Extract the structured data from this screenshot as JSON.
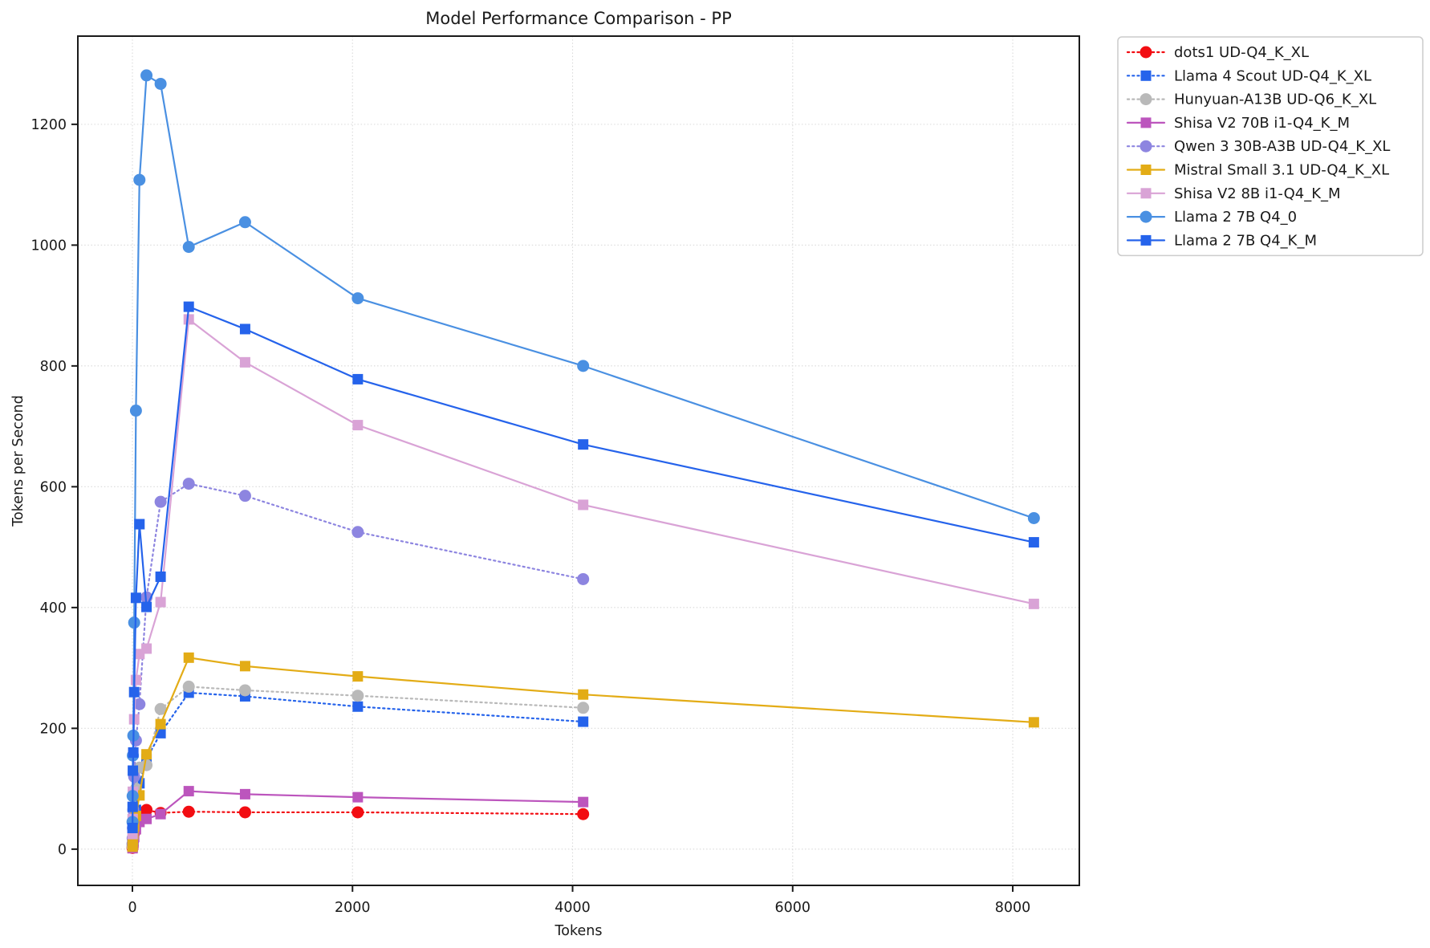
{
  "figure": {
    "title": "Model Performance Comparison - PP"
  },
  "chart_data": {
    "type": "line",
    "title": "Model Performance Comparison - PP",
    "xlabel": "Tokens",
    "ylabel": "Tokens per Second",
    "xlim": [
      -496,
      8605
    ],
    "ylim": [
      -60,
      1346
    ],
    "xticks": [
      0,
      2000,
      4000,
      6000,
      8000
    ],
    "yticks": [
      0,
      200,
      400,
      600,
      800,
      1000,
      1200
    ],
    "grid": true,
    "legend_position": "outside-upper-right",
    "style": {
      "background": "#ffffff",
      "axis_color": "#1a1a1a",
      "grid_color": "#d9d9d9",
      "text_color": "#1a1a1a",
      "legend_border": "#cccccc",
      "legend_background": "#ffffff"
    },
    "series": [
      {
        "name": "dots1 UD-Q4_K_XL",
        "color": "#f20d12",
        "linestyle": "dotted",
        "marker": "circle",
        "x": [
          1,
          2,
          4,
          8,
          16,
          32,
          64,
          128,
          256,
          512,
          1024,
          2048,
          4096
        ],
        "y": [
          2,
          4,
          8,
          15,
          27,
          45,
          58,
          65,
          60,
          62,
          61,
          61,
          58
        ]
      },
      {
        "name": "Llama 4 Scout UD-Q4_K_XL",
        "color": "#2563eb",
        "linestyle": "dotted",
        "marker": "square",
        "x": [
          1,
          2,
          4,
          8,
          16,
          32,
          64,
          128,
          256,
          512,
          1024,
          2048,
          4096
        ],
        "y": [
          3,
          6,
          11,
          21,
          38,
          65,
          109,
          149,
          192,
          259,
          253,
          236,
          211
        ]
      },
      {
        "name": "Hunyuan-A13B UD-Q6_K_XL",
        "color": "#b9b9b9",
        "linestyle": "dotted",
        "marker": "circle",
        "x": [
          1,
          2,
          4,
          8,
          16,
          32,
          64,
          128,
          256,
          512,
          1024,
          2048,
          4096
        ],
        "y": [
          4,
          8,
          16,
          30,
          56,
          100,
          135,
          139,
          232,
          269,
          263,
          254,
          234
        ]
      },
      {
        "name": "Shisa V2 70B i1-Q4_K_M",
        "color": "#bc55bd",
        "linestyle": "solid",
        "marker": "square",
        "x": [
          1,
          2,
          4,
          8,
          16,
          32,
          64,
          128,
          256,
          512,
          1024,
          2048,
          4096
        ],
        "y": [
          1.5,
          3,
          6,
          11,
          20,
          33,
          45,
          50,
          58,
          96,
          91,
          86,
          78
        ]
      },
      {
        "name": "Qwen 3 30B-A3B UD-Q4_K_XL",
        "color": "#8d85e0",
        "linestyle": "dotted",
        "marker": "circle",
        "x": [
          1,
          2,
          4,
          8,
          16,
          32,
          64,
          128,
          256,
          512,
          1024,
          2048,
          4096
        ],
        "y": [
          9,
          18,
          35,
          65,
          120,
          180,
          240,
          417,
          575,
          605,
          585,
          525,
          447
        ]
      },
      {
        "name": "Mistral Small 3.1 UD-Q4_K_XL",
        "color": "#e3ac16",
        "linestyle": "solid",
        "marker": "square",
        "x": [
          1,
          2,
          4,
          8,
          16,
          32,
          64,
          128,
          256,
          512,
          1024,
          2048,
          4096,
          8192
        ],
        "y": [
          4,
          8,
          15,
          25,
          38,
          55,
          89,
          157,
          207,
          317,
          303,
          286,
          256,
          210
        ]
      },
      {
        "name": "Shisa V2 8B i1-Q4_K_M",
        "color": "#d9a3d6",
        "linestyle": "solid",
        "marker": "square",
        "x": [
          1,
          2,
          4,
          8,
          16,
          32,
          64,
          128,
          256,
          512,
          1024,
          2048,
          4096,
          8192
        ],
        "y": [
          25,
          50,
          95,
          160,
          215,
          280,
          323,
          332,
          409,
          877,
          806,
          702,
          570,
          406
        ]
      },
      {
        "name": "Llama 2 7B Q4_0",
        "color": "#4a90e2",
        "linestyle": "solid",
        "marker": "circle",
        "x": [
          1,
          2,
          4,
          8,
          16,
          32,
          64,
          128,
          256,
          512,
          1024,
          2048,
          4096,
          8192
        ],
        "y": [
          45,
          88,
          155,
          188,
          375,
          726,
          1108,
          1281,
          1267,
          997,
          1038,
          912,
          800,
          548
        ]
      },
      {
        "name": "Llama 2 7B Q4_K_M",
        "color": "#2563eb",
        "linestyle": "solid",
        "marker": "square",
        "x": [
          1,
          2,
          4,
          8,
          16,
          32,
          64,
          128,
          256,
          512,
          1024,
          2048,
          4096,
          8192
        ],
        "y": [
          35,
          70,
          130,
          160,
          260,
          416,
          538,
          401,
          451,
          898,
          861,
          778,
          670,
          508
        ]
      }
    ]
  }
}
